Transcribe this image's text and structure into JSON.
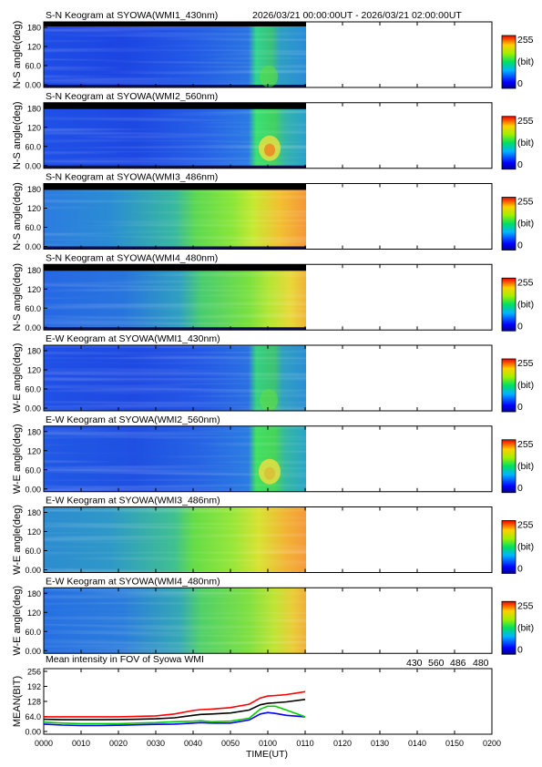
{
  "header": {
    "time_range": "2026/03/21 00:00:00UT - 2026/03/21 02:00:00UT"
  },
  "colorbar": {
    "max_label": "255",
    "unit_label": "(bit)",
    "min_label": "0"
  },
  "keogram_y_ticks": [
    "180",
    "120",
    "60.0",
    "0.00"
  ],
  "keograms": [
    {
      "title": "S-N Keogram at SYOWA(WMI1_430nm)",
      "ylabel": "N-S angle(deg)"
    },
    {
      "title": "S-N Keogram at SYOWA(WMI2_560nm)",
      "ylabel": "N-S angle(deg)"
    },
    {
      "title": "S-N Keogram at SYOWA(WMI3_486nm)",
      "ylabel": "N-S angle(deg)"
    },
    {
      "title": "S-N Keogram at SYOWA(WMI4_480nm)",
      "ylabel": "N-S angle(deg)"
    },
    {
      "title": "E-W Keogram at SYOWA(WMI1_430nm)",
      "ylabel": "W-E angle(deg)"
    },
    {
      "title": "E-W Keogram at SYOWA(WMI2_560nm)",
      "ylabel": "W-E angle(deg)"
    },
    {
      "title": "E-W Keogram at SYOWA(WMI3_486nm)",
      "ylabel": "W-E angle(deg)"
    },
    {
      "title": "E-W Keogram at SYOWA(WMI4_480nm)",
      "ylabel": "W-E angle(deg)"
    }
  ],
  "mean_panel": {
    "title": "Mean intensity in FOV of Syowa WMI",
    "ylabel": "MEAN(BIT)",
    "xlabel": "TIME(UT)",
    "y_ticks": [
      "256",
      "192",
      "128",
      "64.0",
      "0.00"
    ],
    "x_ticks": [
      "0000",
      "0010",
      "0020",
      "0030",
      "0040",
      "0050",
      "0100",
      "0110",
      "0120",
      "0130",
      "0140",
      "0150",
      "0200"
    ],
    "legend": [
      {
        "label": "430",
        "color": "#0000ff"
      },
      {
        "label": "560",
        "color": "#00cc00"
      },
      {
        "label": "486",
        "color": "#ff0000"
      },
      {
        "label": "480",
        "color": "#000000"
      }
    ]
  },
  "chart_data": {
    "type": "line",
    "title": "Mean intensity in FOV of Syowa WMI",
    "xlabel": "TIME(UT)",
    "ylabel": "MEAN(BIT)",
    "xlim": [
      0,
      120
    ],
    "ylim": [
      0,
      256
    ],
    "x": [
      0,
      5,
      10,
      15,
      20,
      25,
      30,
      35,
      40,
      42,
      45,
      50,
      55,
      58,
      60,
      62,
      65,
      70
    ],
    "series": [
      {
        "name": "430",
        "color": "#0000ff",
        "values": [
          38,
          34,
          32,
          32,
          33,
          35,
          37,
          38,
          42,
          44,
          42,
          42,
          55,
          80,
          86,
          82,
          74,
          68
        ]
      },
      {
        "name": "560",
        "color": "#00cc00",
        "values": [
          46,
          42,
          40,
          40,
          40,
          42,
          44,
          48,
          50,
          52,
          48,
          50,
          62,
          100,
          112,
          112,
          96,
          68
        ]
      },
      {
        "name": "486",
        "color": "#ff0000",
        "values": [
          68,
          68,
          68,
          68,
          68,
          70,
          72,
          80,
          94,
          98,
          100,
          106,
          120,
          146,
          154,
          156,
          160,
          172
        ]
      },
      {
        "name": "480",
        "color": "#000000",
        "values": [
          58,
          56,
          56,
          56,
          57,
          58,
          60,
          64,
          74,
          78,
          80,
          84,
          96,
          118,
          124,
          126,
          130,
          140
        ]
      }
    ]
  }
}
